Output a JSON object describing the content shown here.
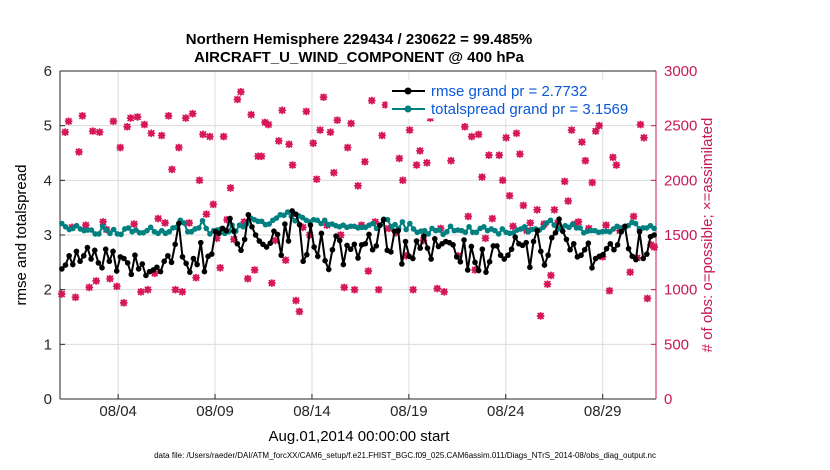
{
  "chart_data": {
    "type": "line",
    "title_line1": "Northern Hemisphere 229434 / 230622 = 99.485%",
    "title_line2": "AIRCRAFT_U_WIND_COMPONENT @ 400 hPa",
    "xlabel": "Aug.01,2014 00:00:00 start",
    "ylabel_left": "rmse and totalspread",
    "ylabel_right": "# of obs: o=possible; ×=assimilated",
    "footnote": "data file: /Users/raeder/DAI/ATM_forcXX/CAM6_setup/f.e21.FHIST_BGC.f09_025.CAM6assim.011/Diags_NTrS_2014-08/obs_diag_output.nc",
    "x_tick_labels": [
      "08/04",
      "08/09",
      "08/14",
      "08/19",
      "08/24",
      "08/29"
    ],
    "x_tick_days": [
      4,
      9,
      14,
      19,
      24,
      29
    ],
    "xlim_days": [
      1,
      31.75
    ],
    "ylim_left": [
      0,
      6
    ],
    "yticks_left": [
      "0",
      "1",
      "2",
      "3",
      "4",
      "5",
      "6"
    ],
    "ylim_right": [
      0,
      3000
    ],
    "yticks_right": [
      "0",
      "500",
      "1000",
      "1500",
      "2000",
      "2500",
      "3000"
    ],
    "colors": {
      "rmse": "#000000",
      "spread": "#008080",
      "obs": "#d6185a",
      "legend_text": "#0a59d6",
      "right_axis": "#c8185a"
    },
    "legend": [
      {
        "name": "rmse",
        "label": "rmse grand pr = 2.7732"
      },
      {
        "name": "spread",
        "label": "totalspread grand pr = 3.1569"
      }
    ],
    "series": [
      {
        "name": "rmse",
        "values": [
          2.38,
          2.45,
          2.62,
          2.46,
          2.7,
          2.52,
          2.62,
          2.77,
          2.56,
          2.72,
          2.49,
          2.4,
          2.74,
          2.52,
          2.7,
          2.34,
          2.6,
          2.57,
          2.49,
          2.28,
          2.63,
          2.38,
          2.47,
          2.26,
          2.33,
          2.36,
          2.41,
          2.33,
          2.52,
          2.62,
          2.5,
          2.83,
          3.21,
          2.6,
          2.48,
          2.32,
          2.57,
          2.46,
          2.86,
          2.33,
          2.61,
          2.65,
          3.06,
          3.03,
          3.12,
          3.08,
          3.3,
          3.07,
          2.84,
          2.72,
          2.92,
          3.37,
          3.15,
          3.0,
          2.89,
          2.83,
          2.78,
          2.85,
          3.07,
          3.01,
          2.63,
          3.2,
          2.89,
          3.44,
          3.38,
          3.19,
          2.52,
          2.64,
          3.18,
          2.78,
          2.61,
          3.03,
          2.53,
          2.37,
          2.73,
          2.98,
          2.9,
          2.46,
          2.81,
          2.74,
          2.83,
          2.58,
          2.82,
          2.84,
          3.01,
          2.73,
          2.8,
          3.18,
          3.28,
          2.72,
          2.69,
          3.07,
          3.08,
          2.47,
          2.88,
          2.61,
          2.57,
          2.89,
          2.76,
          2.98,
          2.76,
          2.56,
          2.93,
          2.79,
          2.84,
          2.88,
          2.86,
          2.82,
          2.6,
          2.51,
          2.91,
          2.36,
          2.79,
          2.5,
          2.35,
          2.74,
          2.32,
          2.51,
          2.8,
          2.8,
          2.63,
          2.56,
          2.63,
          2.74,
          2.96,
          2.84,
          2.81,
          2.86,
          2.41,
          2.88,
          3.08,
          2.7,
          2.45,
          2.63,
          2.95,
          3.04,
          3.29,
          3.07,
          2.92,
          2.73,
          2.84,
          2.6,
          2.63,
          2.73,
          2.85,
          2.4,
          2.57,
          2.61,
          2.64,
          2.75,
          2.84,
          2.73,
          2.82,
          3.06,
          3.16,
          2.75,
          2.61,
          2.55,
          3.06,
          2.57,
          2.65,
          2.97,
          3.0
        ]
      },
      {
        "name": "spread",
        "values": [
          3.21,
          3.15,
          3.1,
          3.12,
          3.17,
          3.11,
          3.08,
          3.09,
          3.09,
          3.02,
          3.02,
          3.16,
          3.09,
          3.03,
          3.1,
          3.02,
          3.01,
          3.11,
          3.13,
          3.06,
          3.09,
          3.04,
          3.04,
          3.08,
          3.14,
          3.06,
          3.03,
          3.08,
          3.03,
          3.06,
          3.13,
          3.14,
          3.27,
          3.22,
          3.06,
          3.06,
          3.11,
          3.13,
          3.26,
          3.12,
          3.02,
          3.08,
          3.09,
          3.11,
          3.03,
          3.06,
          3.18,
          3.07,
          3.18,
          3.15,
          3.21,
          3.31,
          3.28,
          3.25,
          3.25,
          3.19,
          3.2,
          3.27,
          3.31,
          3.37,
          3.36,
          3.42,
          3.34,
          3.26,
          3.35,
          3.32,
          3.27,
          3.24,
          3.28,
          3.27,
          3.21,
          3.27,
          3.19,
          3.2,
          3.17,
          3.15,
          3.18,
          3.14,
          3.16,
          3.16,
          3.13,
          3.14,
          3.14,
          3.18,
          3.21,
          3.12,
          3.18,
          3.29,
          3.28,
          3.15,
          3.19,
          3.12,
          3.24,
          3.1,
          3.21,
          3.11,
          3.05,
          3.07,
          3.08,
          3.02,
          3.12,
          3.08,
          3.09,
          3.01,
          3.06,
          3.16,
          3.08,
          3.09,
          3.08,
          3.05,
          3.15,
          3.05,
          3.05,
          3.12,
          3.15,
          3.08,
          3.11,
          3.08,
          3.02,
          3.11,
          3.05,
          3.03,
          3.04,
          3.09,
          3.11,
          3.15,
          3.06,
          3.1,
          3.11,
          3.09,
          3.14,
          3.22,
          3.27,
          3.18,
          3.11,
          3.14,
          3.17,
          3.14,
          3.2,
          3.13,
          3.13,
          3.04,
          3.07,
          3.08,
          3.08,
          3.05,
          3.06,
          3.07,
          3.06,
          3.11,
          3.16,
          3.13,
          3.12,
          3.17,
          3.23,
          3.21,
          3.11,
          3.13,
          3.13,
          3.17,
          3.12
        ]
      },
      {
        "name": "obs_possible",
        "values": [
          960,
          2440,
          2540,
          1570,
          930,
          2260,
          2590,
          1590,
          1020,
          2450,
          1080,
          2440,
          1620,
          1550,
          1100,
          2540,
          1030,
          2300,
          880,
          2490,
          2570,
          1600,
          2580,
          980,
          2510,
          1000,
          2430,
          1150,
          1650,
          2410,
          1610,
          2590,
          2100,
          1000,
          2300,
          980,
          2570,
          1610,
          2610,
          1110,
          2000,
          2420,
          1690,
          2400,
          1780,
          1470,
          1200,
          2400,
          1640,
          1930,
          1460,
          2740,
          2810,
          1620,
          1100,
          2600,
          1180,
          2220,
          2220,
          2530,
          2510,
          1060,
          1450,
          2360,
          2640,
          1270,
          2330,
          2140,
          900,
          800,
          1570,
          2630,
          1500,
          2340,
          2010,
          2460,
          2760,
          1590,
          2440,
          2070,
          2550,
          1500,
          1020,
          2300,
          2520,
          1000,
          1950,
          1590,
          2170,
          1170,
          2730,
          1620,
          1000,
          2410,
          2690,
          1560,
          2650,
          1520,
          2200,
          2000,
          1310,
          2460,
          1000,
          2140,
          2270,
          1450,
          2160,
          2570,
          2790,
          1010,
          1560,
          980,
          2690,
          2180,
          2640,
          1310,
          2600,
          2490,
          1670,
          2400,
          1180,
          2420,
          2030,
          1470,
          2230,
          1650,
          2650,
          2230,
          2000,
          2390,
          1860,
          1580,
          2430,
          2240,
          1770,
          1540,
          1610,
          2790,
          1730,
          760,
          1600,
          1050,
          1130,
          1730,
          1610,
          2610,
          1990,
          1810,
          2460,
          1600,
          1620,
          2350,
          2180,
          1560,
          1980,
          2450,
          2500,
          1300,
          1590,
          990,
          2210,
          2140,
          1540,
          2700,
          2650,
          1160,
          1670,
          1290,
          2510,
          2390,
          920,
          1410,
          1390
        ]
      },
      {
        "name": "obs_assimilated",
        "values": [
          960,
          2440,
          2540,
          1570,
          930,
          2260,
          2590,
          1590,
          1020,
          2450,
          1080,
          2440,
          1620,
          1550,
          1100,
          2540,
          1030,
          2300,
          880,
          2490,
          2570,
          1600,
          2580,
          980,
          2510,
          1000,
          2430,
          1150,
          1650,
          2410,
          1610,
          2590,
          2100,
          1000,
          2300,
          980,
          2570,
          1610,
          2610,
          1110,
          2000,
          2420,
          1690,
          2400,
          1780,
          1470,
          1200,
          2400,
          1640,
          1930,
          1460,
          2740,
          2810,
          1620,
          1100,
          2600,
          1180,
          2220,
          2220,
          2530,
          2510,
          1060,
          1450,
          2360,
          2640,
          1270,
          2330,
          2140,
          900,
          800,
          1570,
          2630,
          1500,
          2340,
          2010,
          2460,
          2760,
          1590,
          2440,
          2070,
          2550,
          1500,
          1020,
          2300,
          2520,
          1000,
          1950,
          1590,
          2170,
          1170,
          2730,
          1620,
          1000,
          2410,
          2690,
          1560,
          2650,
          1520,
          2200,
          2000,
          1310,
          2460,
          1000,
          2140,
          2270,
          1450,
          2160,
          2570,
          2790,
          1010,
          1560,
          980,
          2690,
          2180,
          2640,
          1310,
          2600,
          2490,
          1670,
          2400,
          1180,
          2420,
          2030,
          1470,
          2230,
          1650,
          2650,
          2230,
          2000,
          2390,
          1860,
          1580,
          2430,
          2240,
          1770,
          1540,
          1610,
          2790,
          1730,
          760,
          1600,
          1050,
          1130,
          1730,
          1610,
          2610,
          1990,
          1810,
          2460,
          1600,
          1620,
          2350,
          2180,
          1560,
          1980,
          2450,
          2500,
          1300,
          1590,
          990,
          2210,
          2140,
          1540,
          2700,
          2650,
          1160,
          1670,
          1290,
          2510,
          2390,
          920,
          1410,
          1390
        ]
      }
    ]
  }
}
